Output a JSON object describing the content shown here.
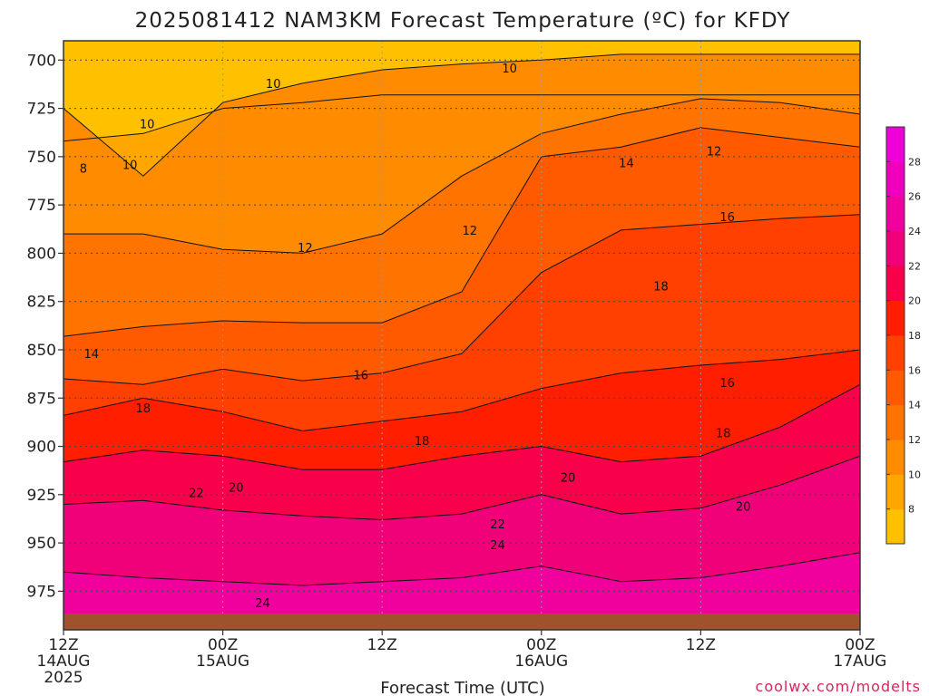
{
  "chart_data": {
    "type": "heatmap",
    "title": "2025081412 NAM3KM Forecast Temperature (ºC) for KFDY",
    "xlabel": "Forecast Time (UTC)",
    "ylabel": "",
    "credit": "coolwx.com/modelts",
    "y_ticks": [
      "700",
      "725",
      "750",
      "775",
      "800",
      "825",
      "850",
      "875",
      "900",
      "925",
      "950",
      "975"
    ],
    "x_ticks": [
      {
        "line1": "12Z",
        "line2": "14AUG",
        "line3": "2025"
      },
      {
        "line1": "00Z",
        "line2": "15AUG",
        "line3": ""
      },
      {
        "line1": "12Z",
        "line2": "",
        "line3": ""
      },
      {
        "line1": "00Z",
        "line2": "16AUG",
        "line3": ""
      },
      {
        "line1": "12Z",
        "line2": "",
        "line3": ""
      },
      {
        "line1": "00Z",
        "line2": "17AUG",
        "line3": ""
      }
    ],
    "x_hours": [
      0,
      12,
      24,
      36,
      48,
      60
    ],
    "ylim_hpa": [
      690,
      995
    ],
    "ground_hpa": 984,
    "grid": true,
    "colorbar": {
      "bounds": [
        6,
        8,
        10,
        12,
        14,
        16,
        18,
        20,
        22,
        24,
        26,
        28,
        30
      ],
      "tick_labels": [
        "8",
        "10",
        "12",
        "14",
        "16",
        "18",
        "20",
        "22",
        "24",
        "26",
        "28"
      ],
      "colors": [
        "#ffc000",
        "#ffa600",
        "#ff8c00",
        "#ff7300",
        "#ff5a00",
        "#ff4000",
        "#ff1f00",
        "#f8004a",
        "#f00079",
        "#f0009c",
        "#f000bc",
        "#f000d8"
      ]
    },
    "isotherm_heights_hpa": {
      "levels": [
        8,
        10,
        12,
        14,
        16,
        18,
        20,
        22,
        24
      ],
      "hours": [
        0,
        6,
        12,
        18,
        24,
        30,
        36,
        42,
        48,
        54,
        60
      ],
      "values": [
        [
          742,
          738,
          725,
          722,
          718,
          718,
          718,
          718,
          718,
          718,
          718
        ],
        [
          725,
          760,
          722,
          712,
          705,
          702,
          700,
          697,
          697,
          697,
          697
        ],
        [
          790,
          790,
          798,
          800,
          790,
          760,
          738,
          728,
          720,
          722,
          728
        ],
        [
          843,
          838,
          835,
          836,
          836,
          820,
          750,
          745,
          735,
          740,
          745
        ],
        [
          865,
          868,
          860,
          866,
          862,
          852,
          810,
          788,
          785,
          782,
          780
        ],
        [
          884,
          875,
          882,
          892,
          887,
          882,
          870,
          862,
          858,
          855,
          850
        ],
        [
          908,
          902,
          905,
          912,
          912,
          905,
          900,
          908,
          905,
          890,
          868
        ],
        [
          930,
          928,
          933,
          936,
          938,
          935,
          925,
          935,
          932,
          920,
          905
        ],
        [
          965,
          968,
          970,
          972,
          970,
          968,
          962,
          970,
          968,
          962,
          955
        ]
      ]
    },
    "contour_labels": [
      {
        "text": "10",
        "t": 15.8,
        "p": 712
      },
      {
        "text": "10",
        "t": 6.3,
        "p": 733
      },
      {
        "text": "10",
        "t": 33.6,
        "p": 704
      },
      {
        "text": "8",
        "t": 1.5,
        "p": 756
      },
      {
        "text": "10",
        "t": 5.0,
        "p": 754
      },
      {
        "text": "12",
        "t": 18.2,
        "p": 797
      },
      {
        "text": "12",
        "t": 30.6,
        "p": 788
      },
      {
        "text": "12",
        "t": 49.0,
        "p": 747
      },
      {
        "text": "14",
        "t": 42.4,
        "p": 753
      },
      {
        "text": "14",
        "t": 2.1,
        "p": 852
      },
      {
        "text": "16",
        "t": 50.0,
        "p": 781
      },
      {
        "text": "18",
        "t": 45.0,
        "p": 817
      },
      {
        "text": "16",
        "t": 22.4,
        "p": 863
      },
      {
        "text": "16",
        "t": 50.0,
        "p": 867
      },
      {
        "text": "18",
        "t": 6.0,
        "p": 880
      },
      {
        "text": "18",
        "t": 27.0,
        "p": 897
      },
      {
        "text": "18",
        "t": 49.7,
        "p": 893
      },
      {
        "text": "20",
        "t": 13.0,
        "p": 921
      },
      {
        "text": "20",
        "t": 38.0,
        "p": 916
      },
      {
        "text": "20",
        "t": 51.2,
        "p": 931
      },
      {
        "text": "22",
        "t": 10.0,
        "p": 924
      },
      {
        "text": "22",
        "t": 32.7,
        "p": 940
      },
      {
        "text": "24",
        "t": 32.7,
        "p": 951
      },
      {
        "text": "24",
        "t": 15.0,
        "p": 981
      }
    ]
  }
}
